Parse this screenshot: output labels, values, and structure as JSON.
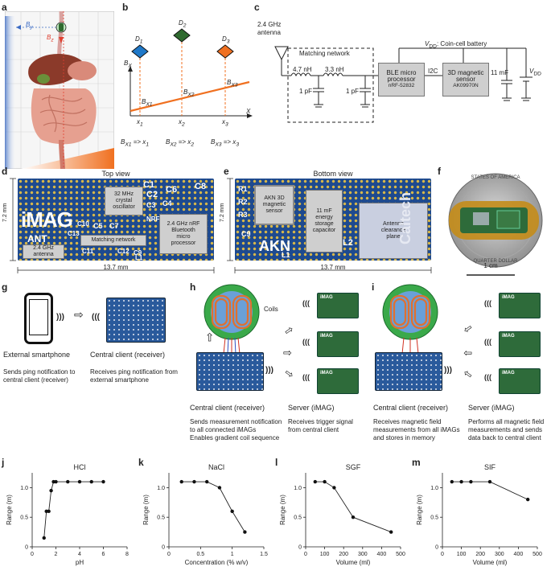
{
  "panel_letters": {
    "a": "a",
    "b": "b",
    "c": "c",
    "d": "d",
    "e": "e",
    "f": "f",
    "g": "g",
    "h": "h",
    "i": "i",
    "j": "j",
    "k": "k",
    "l": "l",
    "m": "m"
  },
  "panel_a": {
    "by": "B",
    "by_sub": "y",
    "bz": "B",
    "bz_sub": "z"
  },
  "panel_b": {
    "devices": [
      {
        "label": "D",
        "sub": "1",
        "color": "#1f78c8"
      },
      {
        "label": "D",
        "sub": "2",
        "color": "#2f6a2f"
      },
      {
        "label": "D",
        "sub": "3",
        "color": "#f07020"
      }
    ],
    "axis_y": "B",
    "axis_y_sub": "X",
    "axis_x": "X",
    "points": [
      {
        "b": "B",
        "bs": "X1",
        "x": "x",
        "xs": "1"
      },
      {
        "b": "B",
        "bs": "X2",
        "x": "x",
        "xs": "2"
      },
      {
        "b": "B",
        "bs": "X3",
        "x": "x",
        "xs": "3"
      }
    ],
    "mappings": [
      {
        "b": "B",
        "bs": "X1",
        "arrow": "=> x",
        "xs": "1"
      },
      {
        "b": "B",
        "bs": "X2",
        "arrow": "=> x",
        "xs": "2"
      },
      {
        "b": "B",
        "bs": "X3",
        "arrow": "=> x",
        "xs": "3"
      }
    ]
  },
  "panel_c": {
    "antenna": "2.4 GHz\nantenna",
    "matching": "Matching network",
    "l1": "4.7 nH",
    "l2": "3.3 nH",
    "c1": "1 pF",
    "c2": "1 pF",
    "ble": "BLE micro\nprocessor",
    "ble_part": "nRF-52832",
    "i2c": "I2C",
    "mag": "3D magnetic\nsensor",
    "mag_part": "AK09970N",
    "battery": "V",
    "battery_sub": "DD",
    "battery_rest": ": Coin-cell battery",
    "cap": "11 mF",
    "vdd": "V",
    "vdd_sub": "DD"
  },
  "panel_d": {
    "title": "Top view",
    "imag": "iMAG",
    "ant": "ANT",
    "antenna": "2.4 GHz\nantenna",
    "osc": "32 MHz\ncrystal\noscillator",
    "matching": "Matching network",
    "nrf": "2.4 GHz nRF\nBluetooth\nmicro\nprocessor",
    "h": "7.2 mm",
    "w": "13.7 mm",
    "silks": [
      "C1",
      "C2",
      "C6",
      "C8",
      "C3",
      "C4",
      "C5",
      "C7",
      "C9",
      "C10",
      "C11",
      "C12",
      "C13",
      "L1",
      "NRF"
    ]
  },
  "panel_e": {
    "title": "Bottom view",
    "akn": "AKN 3D\nmagnetic\nsensor",
    "cap": "11 mF\nenergy\nstorage\ncapacitor",
    "clear": "Antenna\nclearance\nplane",
    "akn_silk": "AKN",
    "brand": "Caltech",
    "h": "7.2 mm",
    "w": "13.7 mm",
    "silks": [
      "R1",
      "R2",
      "R3",
      "C9",
      "L1",
      "L2"
    ]
  },
  "panel_f": {
    "scale": "1 cm",
    "coin_top": "STATES OF AMERICA",
    "coin_bottom": "QUARTER DOLLAR"
  },
  "panel_g": {
    "phone_label": "External smartphone",
    "phone_desc": "Sends ping notification to\ncentral client (receiver)",
    "client_label": "Central client (receiver)",
    "client_desc": "Receives ping notification from\nexternal smartphone"
  },
  "panel_h": {
    "coils": "Coils",
    "client_label": "Central client (receiver)",
    "client_desc": "Sends measurement notification\nto all connected iMAGs\nEnables gradient coil sequence",
    "server_label": "Server (iMAG)",
    "server_desc": "Receives trigger signal\nfrom central client",
    "imag": "iMAG"
  },
  "panel_i": {
    "client_label": "Central client (receiver)",
    "client_desc": "Receives magnetic field\nmeasurements from all iMAGs\nand stores in memory",
    "server_label": "Server (iMAG)",
    "server_desc": "Performs all magnetic field\nmeasurements and sends\ndata back to central client",
    "imag": "iMAG"
  },
  "chart_data": [
    {
      "type": "line",
      "title": "HCl",
      "xlabel": "pH",
      "ylabel": "Range (m)",
      "xlim": [
        0,
        8
      ],
      "ylim": [
        0,
        1.25
      ],
      "xticks": [
        0,
        2,
        4,
        6,
        8
      ],
      "yticks": [
        0,
        0.5,
        1.0
      ],
      "x": [
        1.0,
        1.2,
        1.4,
        1.6,
        1.8,
        2.0,
        3.0,
        4.0,
        5.0,
        6.0
      ],
      "y": [
        0.15,
        0.6,
        0.6,
        0.95,
        1.1,
        1.1,
        1.1,
        1.1,
        1.1,
        1.1
      ]
    },
    {
      "type": "line",
      "title": "NaCl",
      "xlabel": "Concentration (% w/v)",
      "ylabel": "Range (m)",
      "xlim": [
        0,
        1.5
      ],
      "ylim": [
        0,
        1.25
      ],
      "xticks": [
        0,
        0.5,
        1.0,
        1.5
      ],
      "yticks": [
        0,
        0.5,
        1.0
      ],
      "x": [
        0.2,
        0.4,
        0.6,
        0.8,
        1.0,
        1.2
      ],
      "y": [
        1.1,
        1.1,
        1.1,
        1.0,
        0.6,
        0.25
      ]
    },
    {
      "type": "line",
      "title": "SGF",
      "xlabel": "Volume (ml)",
      "ylabel": "Range (m)",
      "xlim": [
        0,
        500
      ],
      "ylim": [
        0,
        1.25
      ],
      "xticks": [
        0,
        100,
        200,
        300,
        400,
        500
      ],
      "yticks": [
        0,
        0.5,
        1.0
      ],
      "x": [
        50,
        100,
        150,
        250,
        450
      ],
      "y": [
        1.1,
        1.1,
        1.0,
        0.5,
        0.25
      ]
    },
    {
      "type": "line",
      "title": "SIF",
      "xlabel": "Volume (ml)",
      "ylabel": "Range (m)",
      "xlim": [
        0,
        500
      ],
      "ylim": [
        0,
        1.25
      ],
      "xticks": [
        0,
        100,
        200,
        300,
        400,
        500
      ],
      "yticks": [
        0,
        0.5,
        1.0
      ],
      "x": [
        50,
        100,
        150,
        250,
        450
      ],
      "y": [
        1.1,
        1.1,
        1.1,
        1.1,
        0.8
      ]
    }
  ]
}
